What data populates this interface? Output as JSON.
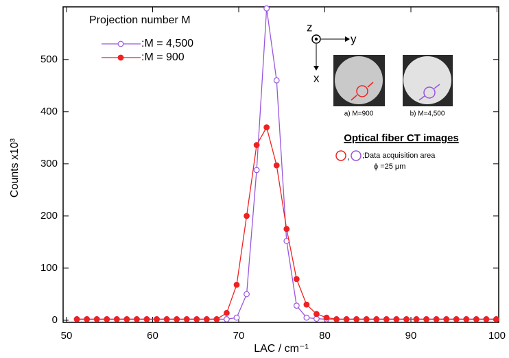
{
  "chart_data": {
    "type": "line",
    "legend_title": "Projection number M",
    "x_label": "LAC / cm⁻¹",
    "y_label": "Counts x10³",
    "x": [
      51.2,
      52.36,
      53.52,
      54.68,
      55.84,
      57,
      58.16,
      59.32,
      60.48,
      61.64,
      62.8,
      63.96,
      65.12,
      66.28,
      67.44,
      68.6,
      69.76,
      70.92,
      72.08,
      73.24,
      74.4,
      75.56,
      76.72,
      77.88,
      79.04,
      80.2,
      81.36,
      82.52,
      83.68,
      84.84,
      86,
      87.16,
      88.32,
      89.48,
      90.64,
      91.8,
      92.96,
      94.12,
      95.28,
      96.44,
      97.6,
      98.76,
      99.92
    ],
    "series": [
      {
        "name": ":M = 4,500",
        "color": "#9955dd",
        "marker": "open-circle",
        "values": [
          2,
          2,
          2,
          2,
          2,
          2,
          2,
          2,
          2,
          2,
          2,
          2,
          2,
          2,
          2,
          2,
          5,
          50,
          288,
          598,
          460,
          152,
          28,
          5,
          3,
          2,
          2,
          2,
          2,
          2,
          2,
          2,
          2,
          2,
          2,
          2,
          2,
          2,
          2,
          2,
          2,
          2,
          2
        ]
      },
      {
        "name": ":M = 900",
        "color": "#ee2222",
        "marker": "filled-circle",
        "values": [
          2,
          2,
          2,
          2,
          2,
          2,
          2,
          2,
          2,
          2,
          2,
          2,
          2,
          2,
          2,
          14,
          68,
          200,
          336,
          370,
          297,
          175,
          79,
          30,
          12,
          5,
          2,
          2,
          2,
          2,
          2,
          2,
          2,
          2,
          2,
          2,
          2,
          2,
          2,
          2,
          2,
          2,
          2
        ]
      }
    ],
    "xlim": [
      49.6,
      100.2
    ],
    "xticks": [
      50,
      60,
      70,
      80,
      90,
      100
    ],
    "ylim": [
      -4,
      601
    ],
    "yticks": [
      0,
      100,
      200,
      300,
      400,
      500
    ],
    "grid": false,
    "annotations": {
      "axis_z": "z",
      "axis_y": "y",
      "axis_x": "x",
      "image_a": "a) M=900",
      "image_b": "b) M=4,500",
      "images_title": "Optical fiber CT images",
      "comma": ",",
      "area_note": ";Data acquisition area",
      "diameter": "ϕ =25 μm"
    }
  }
}
